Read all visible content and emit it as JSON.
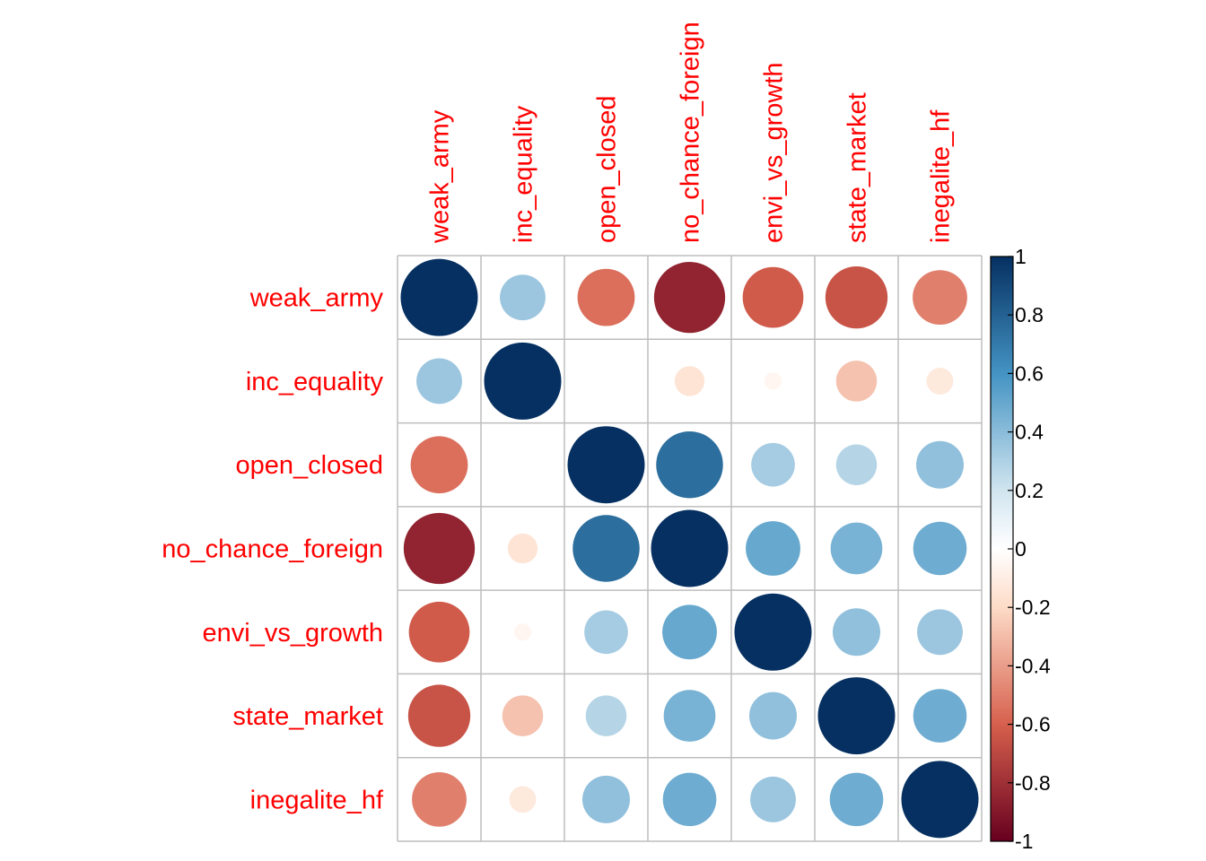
{
  "chart_data": {
    "type": "heatmap",
    "style": "correlation-circles",
    "variables": [
      "weak_army",
      "inc_equality",
      "open_closed",
      "no_chance_foreign",
      "envi_vs_growth",
      "state_market",
      "inegalite_hf"
    ],
    "matrix": [
      [
        1.0,
        0.35,
        -0.55,
        -0.85,
        -0.62,
        -0.65,
        -0.5
      ],
      [
        0.35,
        1.0,
        0.0,
        -0.15,
        -0.05,
        -0.28,
        -0.12
      ],
      [
        -0.55,
        0.0,
        1.0,
        0.75,
        0.32,
        0.28,
        0.38
      ],
      [
        -0.85,
        -0.15,
        0.75,
        1.0,
        0.5,
        0.45,
        0.48
      ],
      [
        -0.62,
        -0.05,
        0.32,
        0.5,
        1.0,
        0.38,
        0.35
      ],
      [
        -0.65,
        -0.28,
        0.28,
        0.45,
        0.38,
        1.0,
        0.48
      ],
      [
        -0.5,
        -0.12,
        0.38,
        0.48,
        0.35,
        0.48,
        1.0
      ]
    ],
    "colorbar": {
      "range": [
        -1,
        1
      ],
      "ticks": [
        "1",
        "0.8",
        "0.6",
        "0.4",
        "0.2",
        "0",
        "-0.2",
        "-0.4",
        "-0.6",
        "-0.8",
        "-1"
      ],
      "colors": {
        "neg_end": "#67001F",
        "neg_mid": "#D6604D",
        "neg_light": "#FDDBC7",
        "zero": "#FFFFFF",
        "pos_light": "#D1E5F0",
        "pos_mid": "#4393C3",
        "pos_end": "#053061"
      }
    },
    "label_color": "#FF0000",
    "grid_color": "#BEBEBE"
  }
}
